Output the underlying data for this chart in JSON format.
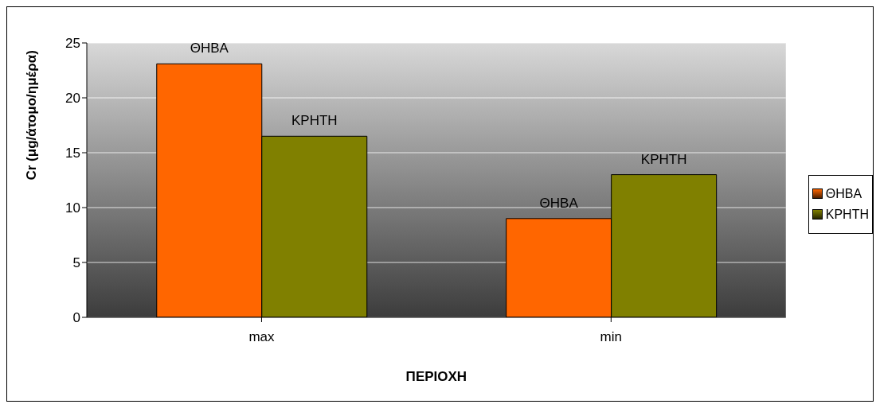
{
  "chart_data": {
    "type": "bar",
    "xlabel": "ΠΕΡΙΟΧΗ",
    "ylabel": "Cr (μg/άτομο/ημέρα)",
    "categories": [
      "max",
      "min"
    ],
    "series": [
      {
        "name": "ΘΗΒΑ",
        "color": "#ff6600",
        "values": [
          23.1,
          9.0
        ]
      },
      {
        "name": "ΚΡΗΤΗ",
        "color": "#808000",
        "values": [
          16.5,
          13.0
        ]
      }
    ],
    "ylim": [
      0,
      25
    ],
    "yticks": [
      0,
      5,
      10,
      15,
      20,
      25
    ],
    "grid": "y",
    "legend": "right"
  }
}
